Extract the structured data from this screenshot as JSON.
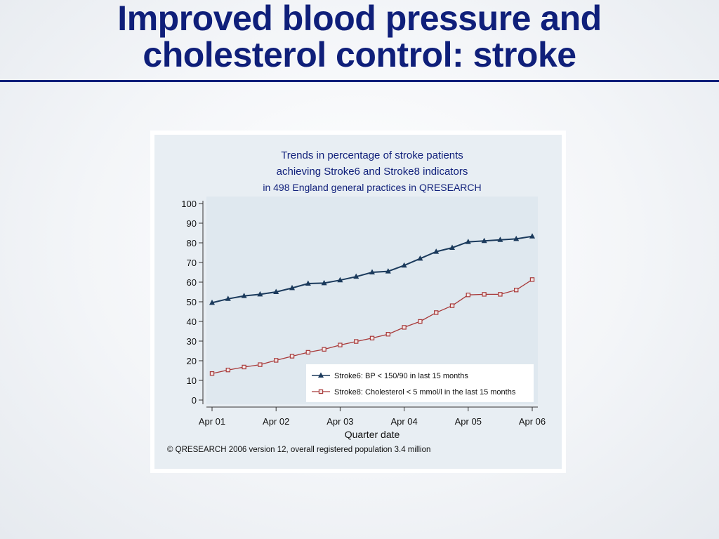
{
  "slide": {
    "title_line1": "Improved blood pressure and",
    "title_line2": "cholesterol control: stroke"
  },
  "colors": {
    "title": "#0f1f7a",
    "stroke6": "#1b3a5c",
    "stroke8": "#a83a3a",
    "chart_bg": "#e8eef3",
    "plot_bg": "#dfe8ef"
  },
  "chart_data": {
    "type": "line",
    "title_lines": [
      "Trends in percentage of stroke patients",
      "achieving Stroke6 and Stroke8 indicators",
      "in 498 England general practices in QRESEARCH"
    ],
    "xlabel": "Quarter date",
    "ylabel": "",
    "ylim": [
      0,
      100
    ],
    "yticks": [
      0,
      10,
      20,
      30,
      40,
      50,
      60,
      70,
      80,
      90,
      100
    ],
    "xtick_labels": [
      "Apr 01",
      "Apr 02",
      "Apr 03",
      "Apr 04",
      "Apr 05",
      "Apr 06"
    ],
    "x": [
      "Apr 01",
      "Jul 01",
      "Oct 01",
      "Jan 02",
      "Apr 02",
      "Jul 02",
      "Oct 02",
      "Jan 03",
      "Apr 03",
      "Jul 03",
      "Oct 03",
      "Jan 04",
      "Apr 04",
      "Jul 04",
      "Oct 04",
      "Jan 05",
      "Apr 05",
      "Jul 05",
      "Oct 05",
      "Jan 06",
      "Apr 06"
    ],
    "series": [
      {
        "name": "Stroke6: BP < 150/90 in last 15 months",
        "marker": "triangle",
        "values": [
          49.5,
          51.5,
          53,
          53.8,
          55,
          57,
          59.3,
          59.5,
          61,
          62.8,
          65,
          65.5,
          68.5,
          72,
          75.5,
          77.5,
          80.5,
          81,
          81.5,
          82,
          83.3
        ]
      },
      {
        "name": "Stroke8: Cholesterol < 5 mmol/l in the last 15 months",
        "marker": "square",
        "values": [
          13.5,
          15.3,
          16.8,
          18,
          20.2,
          22.3,
          24.3,
          25.8,
          28,
          29.8,
          31.5,
          33.5,
          37,
          40,
          44.5,
          48,
          53.5,
          53.8,
          53.8,
          56,
          61.3
        ]
      }
    ],
    "legend_position": "bottom-right",
    "grid": false,
    "footnote": "© QRESEARCH 2006 version 12, overall registered population 3.4 million"
  }
}
